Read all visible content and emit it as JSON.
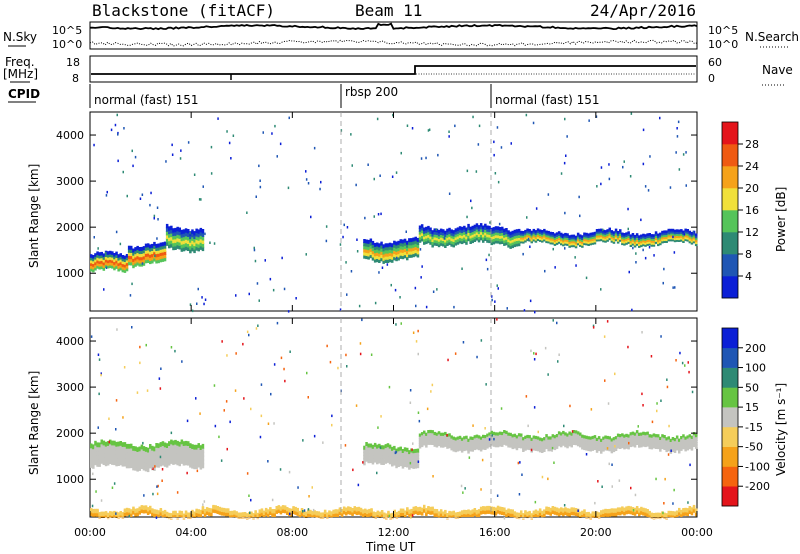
{
  "header": {
    "station": "Blackstone (fitACF)",
    "beam": "Beam 11",
    "date": "24/Apr/2016"
  },
  "labels": {
    "nsky": "N.Sky",
    "nsearch": "N.Search",
    "freq_a": "Freq.",
    "freq_b": "[MHz]",
    "nave": "Nave",
    "cpid": "CPID",
    "x_axis": "Time UT",
    "y_axis": "Slant Range [km]",
    "power_cb": "Power [dB]",
    "velocity_cb": "Velocity [m s⁻¹]"
  },
  "noise_panel": {
    "left_ticks": [
      "10^5",
      "10^0"
    ],
    "right_ticks": [
      "10^5",
      "10^0"
    ]
  },
  "freq_panel": {
    "left_ticks": [
      "18",
      "8"
    ],
    "right_ticks": [
      "60",
      "0"
    ]
  },
  "cpid_segments": [
    {
      "label": "normal (fast) 151",
      "start_h": 0
    },
    {
      "label": "rbsp 200",
      "start_h": 10
    },
    {
      "label": "normal (fast) 151",
      "start_h": 16
    }
  ],
  "x_ticks": [
    "00:00",
    "04:00",
    "08:00",
    "12:00",
    "16:00",
    "20:00",
    "00:00"
  ],
  "y_ticks": [
    "1000",
    "2000",
    "3000",
    "4000"
  ],
  "power_colorbar": {
    "labels": [
      "4",
      "8",
      "12",
      "16",
      "20",
      "24",
      "28"
    ],
    "colors": [
      "#0b1fd6",
      "#1f56b4",
      "#2e8a74",
      "#55c45a",
      "#f0e03a",
      "#f5a21a",
      "#ef5a12",
      "#e4141b"
    ]
  },
  "velocity_colorbar": {
    "labels": [
      "-200",
      "-100",
      "-50",
      "-15",
      "15",
      "50",
      "100",
      "200"
    ],
    "colors": [
      "#e4141b",
      "#f5640f",
      "#f5a21a",
      "#f5cd5a",
      "#c4c4c0",
      "#66c442",
      "#2e8a74",
      "#1f56b4",
      "#0b1fd6"
    ]
  },
  "chart_data": {
    "type": "heatmap",
    "x_axis": {
      "label": "Time UT",
      "range_hours": [
        0,
        24
      ]
    },
    "y_axis": {
      "label": "Slant Range [km]",
      "range_km": [
        180,
        4500
      ]
    },
    "panels": [
      {
        "name": "Power",
        "unit": "dB",
        "bands": [
          {
            "t_start": 0.0,
            "t_end": 1.5,
            "range_center_km": 1200,
            "width_km": 350,
            "peak_db": 28
          },
          {
            "t_start": 1.5,
            "t_end": 3.0,
            "range_center_km": 1400,
            "width_km": 400,
            "peak_db": 26
          },
          {
            "t_start": 3.0,
            "t_end": 4.5,
            "range_center_km": 1750,
            "width_km": 450,
            "peak_db": 18
          },
          {
            "t_start": 10.8,
            "t_end": 13.0,
            "range_center_km": 1500,
            "width_km": 400,
            "peak_db": 22
          },
          {
            "t_start": 13.0,
            "t_end": 17.0,
            "range_center_km": 1800,
            "width_km": 350,
            "peak_db": 18
          },
          {
            "t_start": 17.0,
            "t_end": 24.0,
            "range_center_km": 1750,
            "width_km": 250,
            "peak_db": 20
          }
        ]
      },
      {
        "name": "Velocity",
        "unit": "m s^-1",
        "bands": [
          {
            "t_start": 0.0,
            "t_end": 4.5,
            "range_center_km": 1500,
            "width_km": 500,
            "velocity": 0
          },
          {
            "t_start": 10.8,
            "t_end": 13.0,
            "range_center_km": 1500,
            "width_km": 400,
            "velocity": 0
          },
          {
            "t_start": 13.0,
            "t_end": 24.0,
            "range_center_km": 1800,
            "width_km": 300,
            "velocity": 0
          },
          {
            "t_start": 0.0,
            "t_end": 24.0,
            "range_center_km": 250,
            "width_km": 150,
            "velocity": -40
          }
        ]
      }
    ]
  }
}
